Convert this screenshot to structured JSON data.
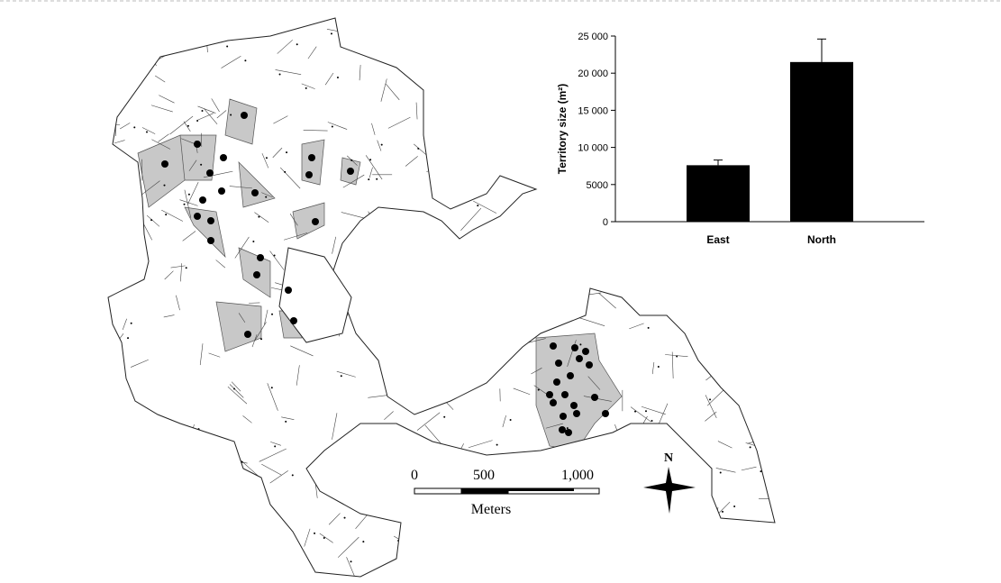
{
  "chart_data": {
    "type": "bar",
    "ylabel": "Territory size (m²)",
    "categories": [
      "East",
      "North"
    ],
    "values": [
      7600,
      21500
    ],
    "errors": [
      700,
      3100
    ],
    "color": "#000000",
    "ylim": [
      0,
      25000
    ],
    "yticks": [
      0,
      5000,
      {
        "value": 10000,
        "label": "10 000"
      },
      {
        "value": 15000,
        "label": "15 000"
      },
      {
        "value": 20000,
        "label": "20 000"
      },
      {
        "value": 25000,
        "label": "25 000"
      }
    ]
  },
  "map": {
    "scale_labels": [
      "0",
      "500",
      "1,000"
    ],
    "scale_unit": "Meters",
    "north": "N"
  }
}
